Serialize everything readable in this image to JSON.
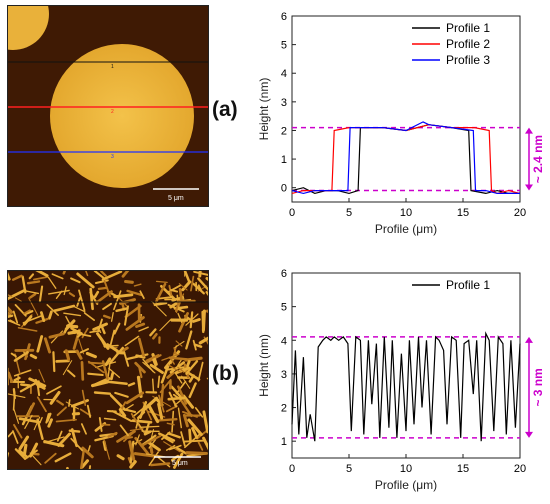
{
  "panels": {
    "a": {
      "label": "(a)",
      "scale_bar": "5 μm",
      "line_markers": [
        "1",
        "2",
        "3"
      ]
    },
    "b": {
      "label": "(b)",
      "scale_bar": "5 μm"
    }
  },
  "chart_data": [
    {
      "type": "line",
      "xlabel": "Profile (μm)",
      "ylabel": "Height (nm)",
      "xlim": [
        0,
        20
      ],
      "ylim": [
        -0.5,
        6
      ],
      "xticks": [
        0,
        5,
        10,
        15,
        20
      ],
      "yticks": [
        0,
        1,
        2,
        3,
        4,
        5,
        6
      ],
      "legend_position": "top-right",
      "reference_lines": [
        2.1,
        -0.1
      ],
      "annotation": "~ 2.4 nm",
      "annotation_color": "#cc00cc",
      "series": [
        {
          "name": "Profile 1",
          "color": "#000000",
          "x": [
            0,
            1,
            2,
            3,
            4,
            5,
            5.8,
            6.0,
            8,
            10,
            12,
            14,
            15.5,
            15.7,
            17,
            18,
            19,
            20
          ],
          "y": [
            -0.1,
            0.0,
            -0.2,
            -0.1,
            -0.1,
            -0.2,
            -0.1,
            2.1,
            2.1,
            2.0,
            2.2,
            2.1,
            2.0,
            -0.1,
            -0.2,
            -0.1,
            -0.2,
            -0.2
          ]
        },
        {
          "name": "Profile 2",
          "color": "#ff0000",
          "x": [
            0,
            1,
            2,
            3,
            3.5,
            3.7,
            5,
            8,
            10,
            12,
            14,
            16,
            17.3,
            17.5,
            18,
            19,
            20
          ],
          "y": [
            -0.2,
            -0.1,
            -0.1,
            -0.1,
            -0.1,
            2.0,
            2.1,
            2.1,
            2.0,
            2.2,
            2.1,
            2.1,
            2.0,
            -0.1,
            -0.2,
            -0.1,
            -0.2
          ]
        },
        {
          "name": "Profile 3",
          "color": "#0000ff",
          "x": [
            0,
            1,
            2,
            3,
            4,
            4.9,
            5.1,
            8,
            10,
            11.5,
            12,
            14,
            15.9,
            16.1,
            17,
            18,
            19,
            20
          ],
          "y": [
            -0.1,
            -0.2,
            -0.1,
            -0.1,
            -0.1,
            -0.1,
            2.1,
            2.1,
            2.0,
            2.3,
            2.2,
            2.1,
            2.0,
            -0.1,
            -0.1,
            -0.2,
            -0.2,
            -0.2
          ]
        }
      ]
    },
    {
      "type": "line",
      "xlabel": "Profile (μm)",
      "ylabel": "Height (nm)",
      "xlim": [
        0,
        20
      ],
      "ylim": [
        0.5,
        6
      ],
      "xticks": [
        0,
        5,
        10,
        15,
        20
      ],
      "yticks": [
        1,
        2,
        3,
        4,
        5,
        6
      ],
      "legend_position": "top-right",
      "reference_lines": [
        4.1,
        1.1
      ],
      "annotation": "~ 3 nm",
      "annotation_color": "#cc00cc",
      "series": [
        {
          "name": "Profile 1",
          "color": "#000000",
          "x": [
            0,
            0.3,
            0.6,
            1.0,
            1.3,
            1.6,
            2.0,
            2.3,
            2.7,
            3.0,
            3.4,
            3.7,
            4.1,
            4.5,
            4.9,
            5.2,
            5.6,
            6.0,
            6.3,
            6.7,
            7.0,
            7.4,
            7.7,
            8.1,
            8.5,
            8.8,
            9.2,
            9.6,
            10.0,
            10.3,
            10.7,
            11.1,
            11.4,
            11.8,
            12.2,
            12.6,
            12.9,
            13.3,
            13.6,
            14.0,
            14.4,
            14.8,
            15.1,
            15.5,
            15.9,
            16.2,
            16.6,
            17.0,
            17.3,
            17.7,
            18.1,
            18.5,
            18.8,
            19.2,
            19.6,
            20.0
          ],
          "y": [
            1.5,
            3.7,
            1.2,
            3.5,
            1.1,
            1.8,
            1.0,
            3.8,
            4.0,
            4.1,
            4.0,
            4.1,
            4.0,
            4.1,
            3.9,
            1.3,
            4.1,
            4.0,
            1.2,
            4.0,
            2.1,
            3.9,
            1.1,
            4.1,
            1.4,
            4.0,
            1.1,
            3.6,
            1.3,
            4.0,
            1.5,
            4.1,
            2.0,
            4.0,
            1.2,
            4.1,
            4.0,
            3.7,
            1.5,
            4.1,
            4.0,
            1.1,
            3.9,
            4.0,
            2.4,
            4.0,
            1.0,
            4.2,
            4.0,
            1.3,
            4.1,
            3.9,
            1.2,
            4.0,
            1.4,
            3.9
          ]
        }
      ]
    }
  ]
}
